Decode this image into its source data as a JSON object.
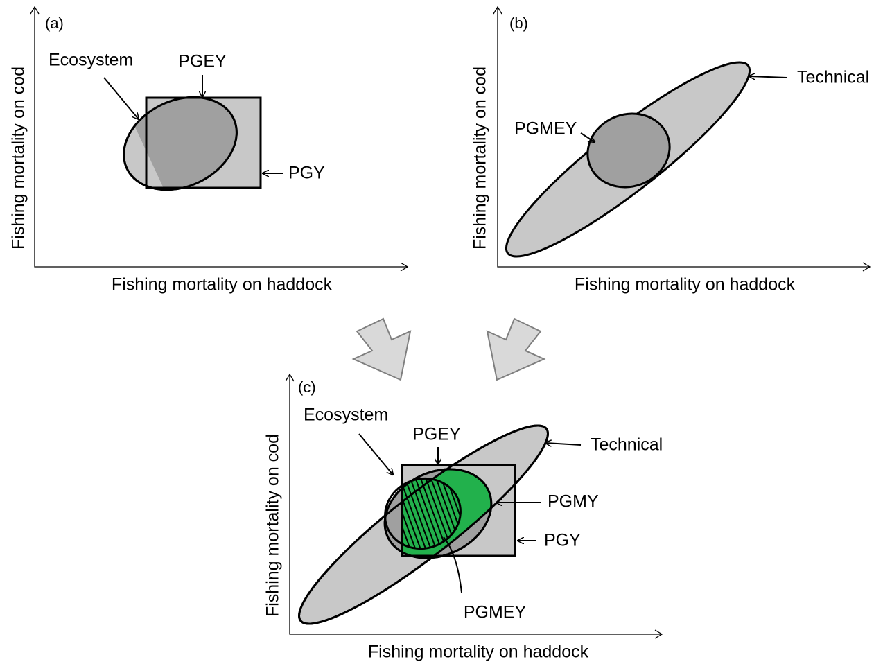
{
  "panels": [
    {
      "label": "(a)",
      "x_axis": "Fishing mortality on haddock",
      "y_axis": "Fishing mortality on cod",
      "annotations": [
        "Ecosystem",
        "PGEY",
        "PGY"
      ]
    },
    {
      "label": "(b)",
      "x_axis": "Fishing mortality on haddock",
      "y_axis": "Fishing mortality on cod",
      "annotations": [
        "Technical",
        "PGMEY"
      ]
    },
    {
      "label": "(c)",
      "x_axis": "Fishing mortality on haddock",
      "y_axis": "Fishing mortality on cod",
      "annotations": [
        "Ecosystem",
        "PGEY",
        "Technical",
        "PGMY",
        "PGY",
        "PGMEY"
      ]
    }
  ]
}
